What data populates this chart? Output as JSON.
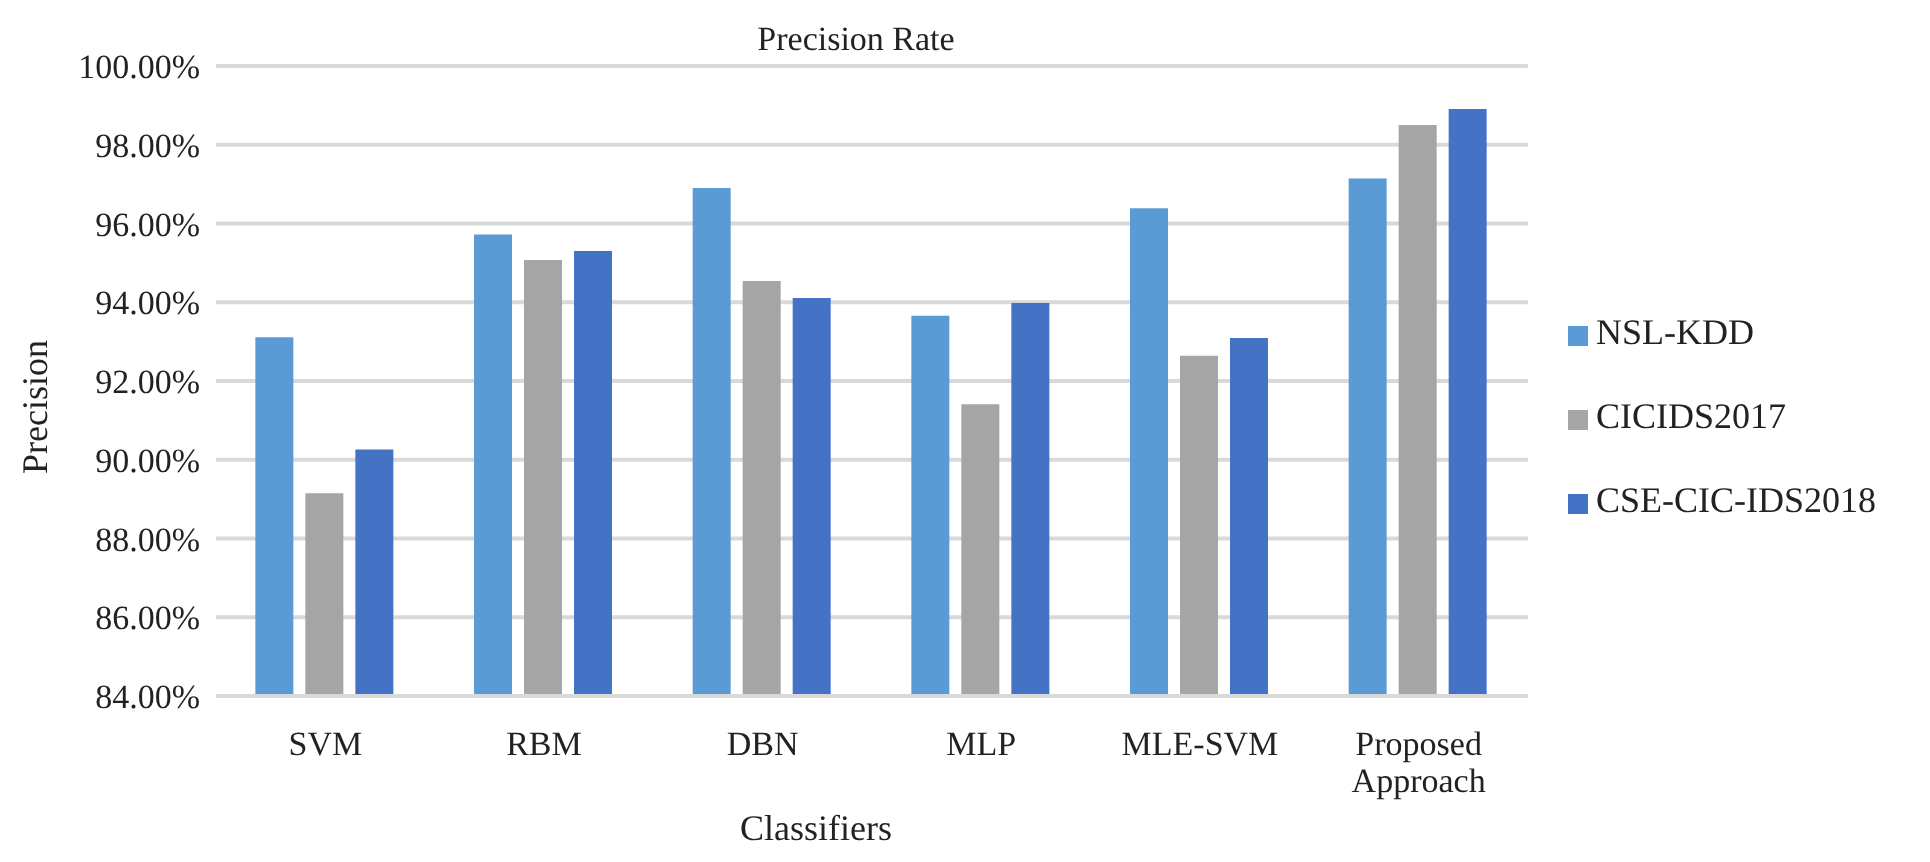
{
  "chart_data": {
    "type": "bar",
    "title": "Precision Rate",
    "xlabel": "Classifiers",
    "ylabel": "Precision",
    "categories": [
      "SVM",
      "RBM",
      "DBN",
      "MLP",
      "MLE-SVM",
      "Proposed Approach"
    ],
    "series": [
      {
        "name": "NSL-KDD",
        "color": "#5b9bd5",
        "values": [
          93.11,
          95.72,
          96.9,
          93.66,
          96.39,
          97.14
        ]
      },
      {
        "name": "CICIDS2017",
        "color": "#a5a5a5",
        "values": [
          89.15,
          95.07,
          94.54,
          91.41,
          92.64,
          98.5
        ]
      },
      {
        "name": "CSE-CIC-IDS2018",
        "color": "#4472c4",
        "values": [
          90.26,
          95.3,
          94.11,
          93.98,
          93.09,
          98.91
        ]
      }
    ],
    "ylim": [
      84,
      100
    ],
    "yticks": [
      {
        "value": 84,
        "label": "84.00%"
      },
      {
        "value": 86,
        "label": "86.00%"
      },
      {
        "value": 88,
        "label": "88.00%"
      },
      {
        "value": 90,
        "label": "90.00%"
      },
      {
        "value": 92,
        "label": "92.00%"
      },
      {
        "value": 94,
        "label": "94.00%"
      },
      {
        "value": 96,
        "label": "96.00%"
      },
      {
        "value": 98,
        "label": "98.00%"
      },
      {
        "value": 100,
        "label": "100.00%"
      }
    ],
    "grid": "y",
    "legend": "right"
  }
}
